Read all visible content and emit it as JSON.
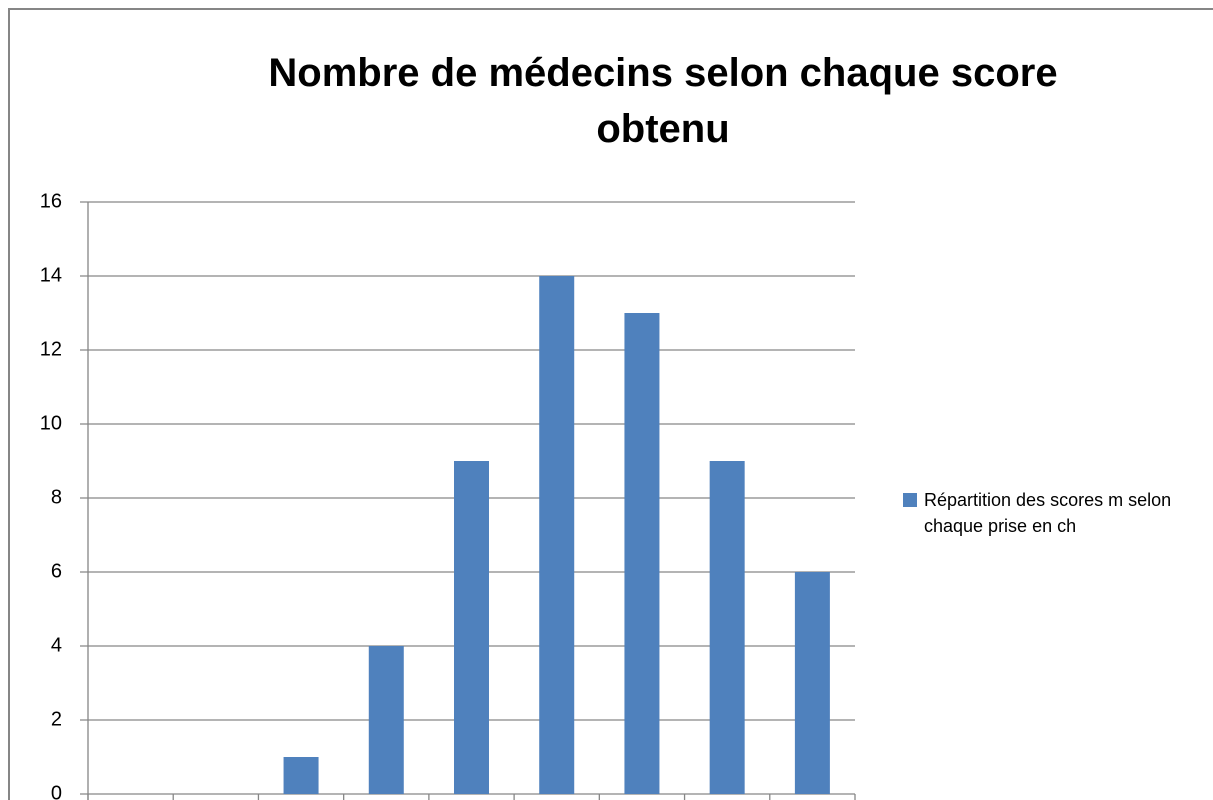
{
  "chart_data": {
    "type": "bar",
    "title": "Nombre de médecins selon chaque score obtenu",
    "categories": [
      null,
      null,
      null,
      null,
      null,
      null,
      null,
      null,
      null
    ],
    "series": [
      {
        "name": "Répartition des scores m selon chaque prise en ch",
        "color": "#4f81bd",
        "values": [
          0,
          0,
          1,
          4,
          9,
          14,
          13,
          9,
          6
        ]
      }
    ],
    "ylim": [
      0,
      16
    ],
    "yticks": [
      0,
      2,
      4,
      6,
      8,
      10,
      12,
      14,
      16
    ],
    "grid": true,
    "legend": "right"
  }
}
